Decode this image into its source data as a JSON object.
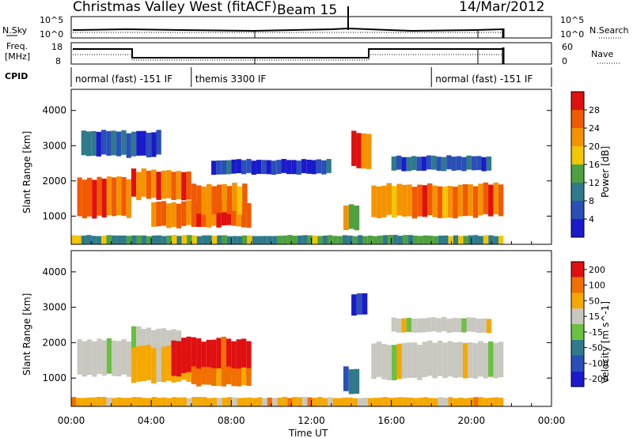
{
  "header": {
    "title": "Christmas Valley West (fitACF)",
    "beam": "Beam 15",
    "date": "14/Mar/2012"
  },
  "nsky_panel": {
    "left_label": "N.Sky",
    "right_label": "N.Search",
    "left_ticks": [
      "10^5",
      "10^0"
    ],
    "right_ticks": [
      "10^5",
      "10^0"
    ]
  },
  "freq_panel": {
    "left_label_1": "Freq.",
    "left_label_2": "[MHz]",
    "right_label": "Nave",
    "left_ticks": [
      "18",
      "8"
    ],
    "right_ticks": [
      "60",
      "0"
    ]
  },
  "cpid": {
    "label": "CPID",
    "segments": [
      {
        "label": "normal (fast) -151 IF",
        "start_h": 0,
        "end_h": 6
      },
      {
        "label": "themis 3300 IF",
        "start_h": 6,
        "end_h": 18
      },
      {
        "label": "normal (fast) -151 IF",
        "start_h": 18,
        "end_h": 24
      }
    ]
  },
  "chart_data": [
    {
      "type": "heatmap",
      "title": "",
      "xlabel": "",
      "ylabel": "Slant Range [km]",
      "xlim": [
        0,
        24
      ],
      "ylim": [
        200,
        4600
      ],
      "yticks": [
        1000,
        2000,
        3000,
        4000
      ],
      "colorbar": {
        "label": "Power [dB]",
        "ticks": [
          4,
          8,
          12,
          16,
          20,
          24,
          28
        ],
        "range": [
          0,
          32
        ],
        "colors": [
          "#1a1acc",
          "#2a4fb8",
          "#2f7a8a",
          "#4fa040",
          "#f2c600",
          "#f59200",
          "#f05a00",
          "#e01010"
        ]
      },
      "regions": [
        {
          "t0": 0.3,
          "t1": 3.0,
          "r0": 1000,
          "r1": 2100,
          "level": 0.85
        },
        {
          "t0": 3.0,
          "t1": 6.0,
          "r0": 1500,
          "r1": 2300,
          "level": 0.75
        },
        {
          "t0": 4.0,
          "t1": 9.0,
          "r0": 700,
          "r1": 1400,
          "level": 0.8
        },
        {
          "t0": 6.0,
          "t1": 8.8,
          "r0": 1100,
          "r1": 1900,
          "level": 0.7
        },
        {
          "t0": 14.0,
          "t1": 15.0,
          "r0": 2400,
          "r1": 3400,
          "level": 0.8
        },
        {
          "t0": 13.6,
          "t1": 14.4,
          "r0": 600,
          "r1": 1300,
          "level": 0.55
        },
        {
          "t0": 15.0,
          "t1": 21.6,
          "r0": 1000,
          "r1": 1900,
          "level": 0.75
        },
        {
          "t0": 0.5,
          "t1": 4.5,
          "r0": 2700,
          "r1": 3400,
          "level": 0.2
        },
        {
          "t0": 7.0,
          "t1": 13.0,
          "r0": 2200,
          "r1": 2600,
          "level": 0.15
        },
        {
          "t0": 16.0,
          "t1": 21.0,
          "r0": 2300,
          "r1": 2700,
          "level": 0.2
        },
        {
          "t0": 0.0,
          "t1": 21.6,
          "r0": 200,
          "r1": 450,
          "level": 0.4
        }
      ]
    },
    {
      "type": "heatmap",
      "title": "",
      "xlabel": "Time UT",
      "ylabel": "Slant Range [km]",
      "xlim": [
        0,
        24
      ],
      "ylim": [
        200,
        4600
      ],
      "yticks": [
        1000,
        2000,
        3000,
        4000
      ],
      "xticks": [
        "00:00",
        "04:00",
        "08:00",
        "12:00",
        "16:00",
        "20:00",
        "00:00"
      ],
      "colorbar": {
        "label": "Velocity [m s^-1]",
        "ticks": [
          200,
          100,
          50,
          15,
          -15,
          -50,
          -100,
          -200
        ],
        "colors": [
          "#1a1acc",
          "#2a4fb8",
          "#2f7a8a",
          "#6ac040",
          "#c8c8c0",
          "#f5a800",
          "#f07000",
          "#e01010"
        ]
      },
      "regions": [
        {
          "t0": 0.3,
          "t1": 3.0,
          "r0": 1100,
          "r1": 2100,
          "class": 4
        },
        {
          "t0": 3.0,
          "t1": 5.5,
          "r0": 1500,
          "r1": 2400,
          "class": 4
        },
        {
          "t0": 3.0,
          "t1": 6.0,
          "r0": 900,
          "r1": 1900,
          "class": 5
        },
        {
          "t0": 5.0,
          "t1": 9.0,
          "r0": 1100,
          "r1": 2100,
          "class": 7
        },
        {
          "t0": 6.0,
          "t1": 9.0,
          "r0": 800,
          "r1": 1300,
          "class": 6
        },
        {
          "t0": 13.6,
          "t1": 14.4,
          "r0": 600,
          "r1": 1300,
          "class": 2
        },
        {
          "t0": 14.0,
          "t1": 14.8,
          "r0": 2800,
          "r1": 3400,
          "class": 0
        },
        {
          "t0": 15.0,
          "t1": 21.6,
          "r0": 1000,
          "r1": 2000,
          "class": 4
        },
        {
          "t0": 16.0,
          "t1": 21.0,
          "r0": 2300,
          "r1": 2700,
          "class": 4
        },
        {
          "t0": 0.0,
          "t1": 21.6,
          "r0": 200,
          "r1": 450,
          "class": 5
        }
      ]
    }
  ]
}
